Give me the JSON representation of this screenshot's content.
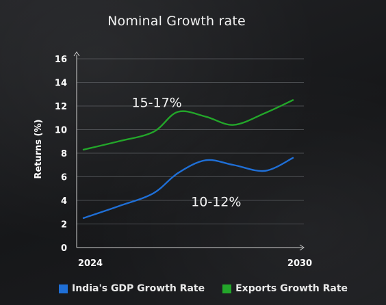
{
  "chart_data": {
    "type": "line",
    "title": "Nominal Growth rate",
    "ylabel": "Returns (%)",
    "xlabel": "",
    "ylim": [
      0,
      16
    ],
    "yticks": [
      0,
      2,
      4,
      6,
      8,
      10,
      12,
      14,
      16
    ],
    "xlim": [
      2024,
      2030
    ],
    "xticks": [
      "2024",
      "2030"
    ],
    "grid": true,
    "legend_position": "bottom",
    "series": [
      {
        "name": "India's GDP Growth Rate",
        "color": "#1f6fd6",
        "x": [
          2024,
          2025,
          2026,
          2026.7,
          2027.5,
          2028.3,
          2029.2,
          2030
        ],
        "values": [
          2.5,
          3.5,
          4.6,
          6.3,
          7.4,
          7.0,
          6.5,
          7.6
        ]
      },
      {
        "name": "Exports Growth Rate",
        "color": "#23a62a",
        "x": [
          2024,
          2025,
          2026,
          2026.7,
          2027.5,
          2028.3,
          2029.2,
          2030
        ],
        "values": [
          8.3,
          9.0,
          9.8,
          11.5,
          11.1,
          10.4,
          11.4,
          12.5
        ]
      }
    ],
    "annotations": [
      {
        "text": "15-17%",
        "x": 2026.1,
        "y": 11.9
      },
      {
        "text": "10-12%",
        "x": 2027.8,
        "y": 3.5
      }
    ]
  }
}
